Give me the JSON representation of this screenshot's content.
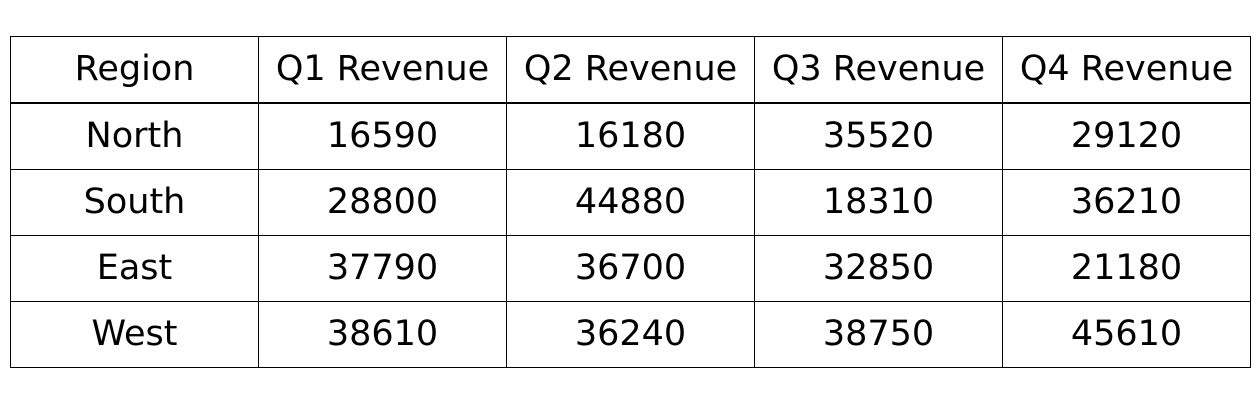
{
  "chart_data": {
    "type": "table",
    "columns": [
      "Region",
      "Q1 Revenue",
      "Q2 Revenue",
      "Q3 Revenue",
      "Q4 Revenue"
    ],
    "rows": [
      [
        "North",
        "16590",
        "16180",
        "35520",
        "29120"
      ],
      [
        "South",
        "28800",
        "44880",
        "18310",
        "36210"
      ],
      [
        "East",
        "37790",
        "36700",
        "32850",
        "21180"
      ],
      [
        "West",
        "38610",
        "36240",
        "38750",
        "45610"
      ]
    ]
  }
}
